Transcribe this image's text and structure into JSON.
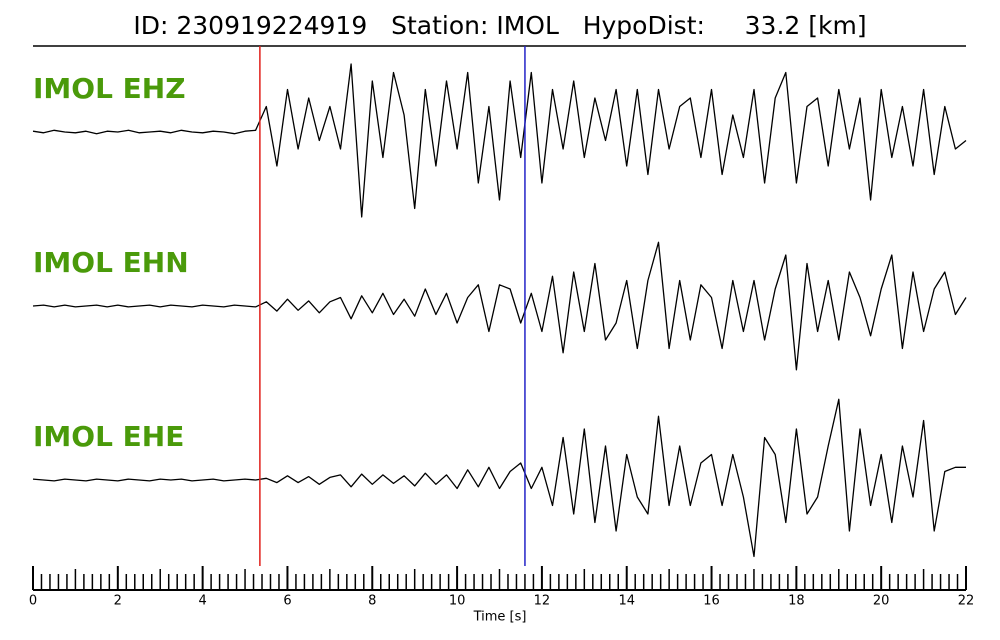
{
  "chart_data": {
    "type": "line",
    "title": "ID: 230919224919   Station: IMOL   HypoDist:     33.2 [km]",
    "xlabel": "Time [s]",
    "xlim": [
      0,
      22
    ],
    "xticks": [
      0,
      2,
      4,
      6,
      8,
      10,
      12,
      14,
      16,
      18,
      20,
      22
    ],
    "xminorticks": [
      0.2,
      0.4,
      0.6,
      0.8,
      1,
      1.2,
      1.4,
      1.6,
      1.8,
      2.2,
      2.4,
      2.6,
      2.8,
      3,
      3.2,
      3.4,
      3.6,
      3.8,
      4.2,
      4.4,
      4.6,
      4.8,
      5,
      5.2,
      5.4,
      5.6,
      5.8,
      6.2,
      6.4,
      6.6,
      6.8,
      7,
      7.2,
      7.4,
      7.6,
      7.8,
      8.2,
      8.4,
      8.6,
      8.8,
      9,
      9.2,
      9.4,
      9.6,
      9.8,
      10.2,
      10.4,
      10.6,
      10.8,
      11,
      11.2,
      11.4,
      11.6,
      11.8,
      12.2,
      12.4,
      12.6,
      12.8,
      13,
      13.2,
      13.4,
      13.6,
      13.8,
      14.2,
      14.4,
      14.6,
      14.8,
      15,
      15.2,
      15.4,
      15.6,
      15.8,
      16.2,
      16.4,
      16.6,
      16.8,
      17,
      17.2,
      17.4,
      17.6,
      17.8,
      18.2,
      18.4,
      18.6,
      18.8,
      19,
      19.2,
      19.4,
      19.6,
      19.8,
      20.2,
      20.4,
      20.6,
      20.8,
      21,
      21.2,
      21.4,
      21.6,
      21.8
    ],
    "ylim": [
      -1,
      1
    ],
    "label_color": "#4a9a0a",
    "markers": [
      {
        "x": 5.35,
        "color": "#e0201a"
      },
      {
        "x": 11.6,
        "color": "#2323c8"
      }
    ],
    "x": [
      0,
      0.25,
      0.5,
      0.75,
      1,
      1.25,
      1.5,
      1.75,
      2,
      2.25,
      2.5,
      2.75,
      3,
      3.25,
      3.5,
      3.75,
      4,
      4.25,
      4.5,
      4.75,
      5,
      5.25,
      5.5,
      5.75,
      6,
      6.25,
      6.5,
      6.75,
      7,
      7.25,
      7.5,
      7.75,
      8,
      8.25,
      8.5,
      8.75,
      9,
      9.25,
      9.5,
      9.75,
      10,
      10.25,
      10.5,
      10.75,
      11,
      11.25,
      11.5,
      11.75,
      12,
      12.25,
      12.5,
      12.75,
      13,
      13.25,
      13.5,
      13.75,
      14,
      14.25,
      14.5,
      14.75,
      15,
      15.25,
      15.5,
      15.75,
      16,
      16.25,
      16.5,
      16.75,
      17,
      17.25,
      17.5,
      17.75,
      18,
      18.25,
      18.5,
      18.75,
      19,
      19.25,
      19.5,
      19.75,
      20,
      20.25,
      20.5,
      20.75,
      21,
      21.25,
      21.5,
      21.75,
      22
    ],
    "series": [
      {
        "name": "IMOL EHZ",
        "color": "#000000",
        "values": [
          0.01,
          -0.01,
          0.02,
          0,
          -0.01,
          0.01,
          -0.02,
          0.01,
          0,
          0.02,
          -0.01,
          0,
          0.01,
          -0.01,
          0.02,
          0,
          -0.01,
          0.01,
          0,
          -0.02,
          0.01,
          0.02,
          0.3,
          -0.4,
          0.5,
          -0.2,
          0.4,
          -0.1,
          0.3,
          -0.2,
          0.8,
          -1.0,
          0.6,
          -0.3,
          0.7,
          0.2,
          -0.9,
          0.5,
          -0.4,
          0.6,
          -0.2,
          0.7,
          -0.6,
          0.3,
          -0.8,
          0.6,
          -0.3,
          0.7,
          -0.6,
          0.5,
          -0.2,
          0.6,
          -0.3,
          0.4,
          -0.1,
          0.5,
          -0.4,
          0.5,
          -0.5,
          0.5,
          -0.2,
          0.3,
          0.4,
          -0.3,
          0.5,
          -0.5,
          0.2,
          -0.3,
          0.5,
          -0.6,
          0.4,
          0.7,
          -0.6,
          0.3,
          0.4,
          -0.4,
          0.5,
          -0.2,
          0.4,
          -0.8,
          0.5,
          -0.3,
          0.3,
          -0.4,
          0.5,
          -0.5,
          0.3,
          -0.2,
          -0.1
        ]
      },
      {
        "name": "IMOL EHN",
        "color": "#000000",
        "values": [
          0,
          0.01,
          -0.01,
          0.01,
          -0.01,
          0,
          0.01,
          -0.01,
          0.01,
          -0.01,
          0,
          0.01,
          -0.01,
          0.01,
          0,
          -0.01,
          0.01,
          0,
          -0.01,
          0.01,
          0,
          -0.01,
          0.05,
          -0.06,
          0.08,
          -0.05,
          0.06,
          -0.08,
          0.05,
          0.1,
          -0.15,
          0.12,
          -0.08,
          0.15,
          -0.1,
          0.08,
          -0.12,
          0.2,
          -0.1,
          0.15,
          -0.2,
          0.1,
          0.25,
          -0.3,
          0.25,
          0.2,
          -0.2,
          0.15,
          -0.3,
          0.35,
          -0.55,
          0.4,
          -0.3,
          0.5,
          -0.4,
          -0.2,
          0.3,
          -0.5,
          0.3,
          0.75,
          -0.5,
          0.3,
          -0.4,
          0.25,
          0.1,
          -0.5,
          0.3,
          -0.3,
          0.3,
          -0.4,
          0.2,
          0.6,
          -0.75,
          0.5,
          -0.3,
          0.3,
          -0.4,
          0.4,
          0.1,
          -0.35,
          0.2,
          0.6,
          -0.5,
          0.4,
          -0.3,
          0.2,
          0.4,
          -0.1,
          0.1
        ]
      },
      {
        "name": "IMOL EHE",
        "color": "#000000",
        "values": [
          0.01,
          0,
          -0.01,
          0.01,
          0,
          -0.01,
          0.01,
          0,
          -0.01,
          0.01,
          0,
          -0.01,
          0.01,
          0,
          0.01,
          -0.01,
          0,
          0.01,
          -0.01,
          0,
          0.01,
          0,
          0.02,
          -0.03,
          0.05,
          -0.03,
          0.04,
          -0.05,
          0.03,
          0.06,
          -0.08,
          0.07,
          -0.05,
          0.06,
          -0.04,
          0.05,
          -0.07,
          0.08,
          -0.05,
          0.06,
          -0.1,
          0.12,
          -0.08,
          0.15,
          -0.1,
          0.1,
          0.2,
          -0.1,
          0.15,
          -0.3,
          0.5,
          -0.4,
          0.6,
          -0.5,
          0.4,
          -0.6,
          0.3,
          -0.2,
          -0.4,
          0.75,
          -0.3,
          0.4,
          -0.3,
          0.2,
          0.3,
          -0.3,
          0.3,
          -0.2,
          -0.9,
          0.5,
          0.3,
          -0.5,
          0.6,
          -0.4,
          -0.2,
          0.4,
          0.95,
          -0.6,
          0.6,
          -0.3,
          0.3,
          -0.5,
          0.4,
          -0.2,
          0.7,
          -0.6,
          0.1,
          0.15,
          0.15
        ]
      }
    ]
  }
}
